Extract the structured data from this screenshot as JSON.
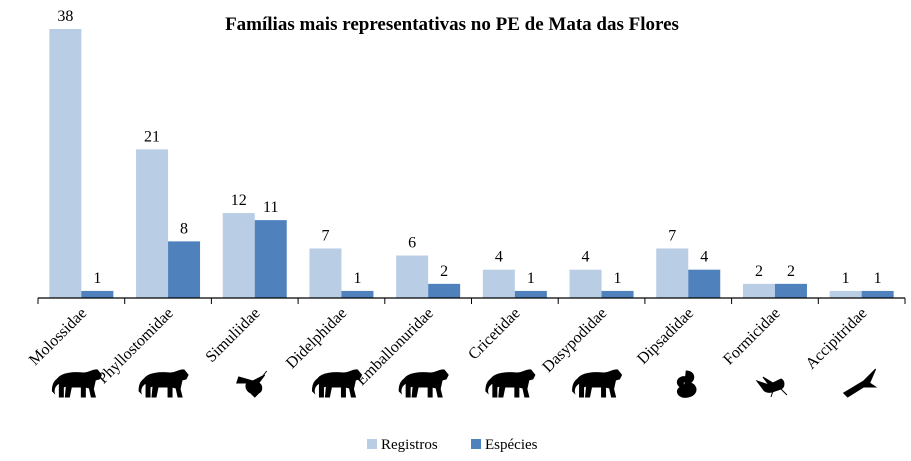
{
  "chart_data": {
    "type": "bar",
    "title": "Famílias mais representativas no PE de Mata das Flores",
    "categories": [
      "Molossidae",
      "Phyllostomidae",
      "Simuliidae",
      "Didelphidae",
      "Emballonuridae",
      "Cricetidae",
      "Dasypodidae",
      "Dipsadidae",
      "Formicidae",
      "Accipitridae"
    ],
    "category_icons": [
      "mammal-icon",
      "mammal-icon",
      "fly-icon",
      "mammal-icon",
      "mammal-icon",
      "mammal-icon",
      "mammal-icon",
      "snake-icon",
      "ant-icon",
      "bird-icon"
    ],
    "series": [
      {
        "name": "Registros",
        "color": "#B9CDE5",
        "values": [
          38,
          21,
          12,
          7,
          6,
          4,
          4,
          7,
          2,
          1
        ]
      },
      {
        "name": "Espécies",
        "color": "#4F81BD",
        "values": [
          1,
          8,
          11,
          1,
          2,
          1,
          1,
          4,
          2,
          1
        ]
      }
    ],
    "ylim": [
      0,
      38
    ],
    "grid": false,
    "data_labels": true,
    "legend_position": "bottom"
  }
}
